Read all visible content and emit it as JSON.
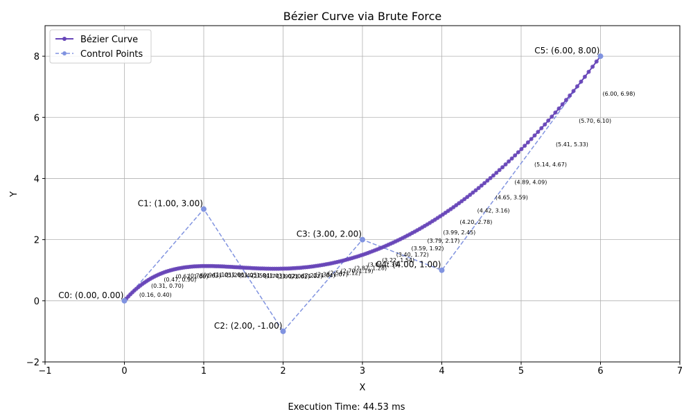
{
  "chart_data": {
    "type": "line",
    "title": "Bézier Curve via Brute Force",
    "xlabel": "X",
    "ylabel": "Y",
    "xlim": [
      -1,
      7
    ],
    "ylim": [
      -2,
      9
    ],
    "xticks": [
      -1,
      0,
      1,
      2,
      3,
      4,
      5,
      6,
      7
    ],
    "yticks": [
      -2,
      0,
      2,
      4,
      6,
      8
    ],
    "grid": true,
    "legend_position": "top-left",
    "series": [
      {
        "name": "Bézier Curve",
        "color": "#6745b8",
        "style": "solid-marker"
      },
      {
        "name": "Control Points",
        "color": "#8093e0",
        "style": "dashed-marker"
      }
    ],
    "control_points": [
      {
        "x": 0,
        "y": 0,
        "label": "C0: (0.00, 0.00)"
      },
      {
        "x": 1,
        "y": 3,
        "label": "C1: (1.00, 3.00)"
      },
      {
        "x": 2,
        "y": -1,
        "label": "C2: (2.00, -1.00)"
      },
      {
        "x": 3,
        "y": 2,
        "label": "C3: (3.00, 2.00)"
      },
      {
        "x": 4,
        "y": 1,
        "label": "C4: (4.00, 1.00)"
      },
      {
        "x": 6,
        "y": 8,
        "label": "C5: (6.00, 8.00)"
      }
    ],
    "curve_samples": 200,
    "point_annotations": [
      {
        "x": 0.16,
        "y": 0.4,
        "label": "(0.16, 0.40)"
      },
      {
        "x": 0.31,
        "y": 0.7,
        "label": "(0.31, 0.70)"
      },
      {
        "x": 0.47,
        "y": 0.9,
        "label": "(0.47, 0.90)"
      },
      {
        "x": 0.62,
        "y": 1.0,
        "label": "(0.62, 1.00)"
      },
      {
        "x": 0.78,
        "y": 1.03,
        "label": "(0.78, 1.03)"
      },
      {
        "x": 0.94,
        "y": 1.05,
        "label": "(0.94, 1.05)"
      },
      {
        "x": 1.1,
        "y": 1.06,
        "label": "(1.10, 1.06)"
      },
      {
        "x": 1.26,
        "y": 1.05,
        "label": "(1.26, 1.05)"
      },
      {
        "x": 1.42,
        "y": 1.04,
        "label": "(1.42, 1.04)"
      },
      {
        "x": 1.58,
        "y": 1.03,
        "label": "(1.58, 1.03)"
      },
      {
        "x": 1.74,
        "y": 1.02,
        "label": "(1.74, 1.02)"
      },
      {
        "x": 1.9,
        "y": 1.01,
        "label": "(1.90, 1.01)"
      },
      {
        "x": 2.06,
        "y": 1.02,
        "label": "(2.06, 1.02)"
      },
      {
        "x": 2.22,
        "y": 1.04,
        "label": "(2.22, 1.04)"
      },
      {
        "x": 2.38,
        "y": 1.07,
        "label": "(2.38, 1.07)"
      },
      {
        "x": 2.54,
        "y": 1.12,
        "label": "(2.54, 1.12)"
      },
      {
        "x": 2.7,
        "y": 1.19,
        "label": "(2.70, 1.19)"
      },
      {
        "x": 2.87,
        "y": 1.28,
        "label": "(2.87, 1.28)"
      },
      {
        "x": 3.04,
        "y": 1.39,
        "label": "(3.04, 1.39)"
      },
      {
        "x": 3.22,
        "y": 1.54,
        "label": "(3.22, 1.54)"
      },
      {
        "x": 3.4,
        "y": 1.72,
        "label": "(3.40, 1.72)"
      },
      {
        "x": 3.59,
        "y": 1.92,
        "label": "(3.59, 1.92)"
      },
      {
        "x": 3.79,
        "y": 2.17,
        "label": "(3.79, 2.17)"
      },
      {
        "x": 3.99,
        "y": 2.45,
        "label": "(3.99, 2.45)"
      },
      {
        "x": 4.2,
        "y": 2.78,
        "label": "(4.20, 2.78)"
      },
      {
        "x": 4.42,
        "y": 3.16,
        "label": "(4.42, 3.16)"
      },
      {
        "x": 4.65,
        "y": 3.59,
        "label": "(4.65, 3.59)"
      },
      {
        "x": 4.89,
        "y": 4.09,
        "label": "(4.89, 4.09)"
      },
      {
        "x": 5.14,
        "y": 4.67,
        "label": "(5.14, 4.67)"
      },
      {
        "x": 5.41,
        "y": 5.33,
        "label": "(5.41, 5.33)"
      },
      {
        "x": 5.7,
        "y": 6.1,
        "label": "(5.70, 6.10)"
      },
      {
        "x": 6.0,
        "y": 6.98,
        "label": "(6.00, 6.98)"
      }
    ]
  },
  "footer": {
    "execution_time": "Execution Time: 44.53 ms"
  }
}
